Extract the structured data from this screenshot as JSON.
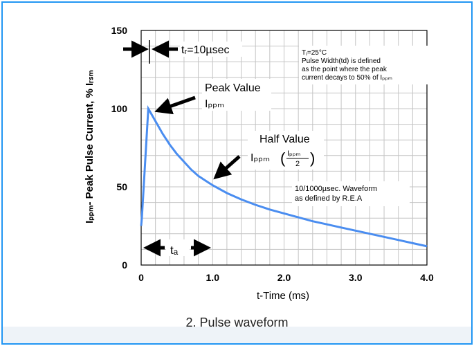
{
  "chart_data": {
    "type": "line",
    "caption": "2. Pulse waveform",
    "xlabel": "t-Time (ms)",
    "ylabel": "Iₚₚₘ- Peak Pulse Current, % Iᵣₛₘ",
    "xlim": [
      0,
      4.0
    ],
    "ylim": [
      0,
      150
    ],
    "x_ticks": [
      "0",
      "1.0",
      "2.0",
      "3.0",
      "4.0"
    ],
    "y_ticks": [
      "0",
      "50",
      "100",
      "150"
    ],
    "grid": true,
    "series": [
      {
        "color": "#4a8df0",
        "x": [
          0,
          0.01,
          0.1,
          0.2,
          0.3,
          0.4,
          0.5,
          0.6,
          0.7,
          0.8,
          0.9,
          1.0,
          1.2,
          1.4,
          1.6,
          1.8,
          2.0,
          2.2,
          2.4,
          2.6,
          2.8,
          3.0,
          3.2,
          3.4,
          3.6,
          3.8,
          4.0
        ],
        "y": [
          25,
          30,
          100,
          92,
          84,
          77,
          71,
          66,
          61,
          57,
          54,
          51,
          46,
          42,
          38.5,
          35.5,
          33,
          30.5,
          28,
          26,
          24,
          22,
          20,
          18,
          16,
          14,
          12
        ]
      }
    ],
    "annotations": {
      "tr": "tᵣ=10µsec",
      "peak_label": "Peak Value",
      "peak_ippm": "Iₚₚₘ",
      "half_label": "Half Value",
      "half_ippm": "Iₚₚₘ",
      "half_frac_num": "Iₚₚₘ",
      "half_frac_den": "2",
      "note1": [
        "Tⱼ=25°C",
        "Pulse Width(td) is defined",
        "as the point where the peak",
        "current decays to 50% of Iₚₚₘ"
      ],
      "note2": [
        "10/1000µsec. Waveform",
        "as defined by R.E.A"
      ],
      "td": "tₐ"
    }
  }
}
